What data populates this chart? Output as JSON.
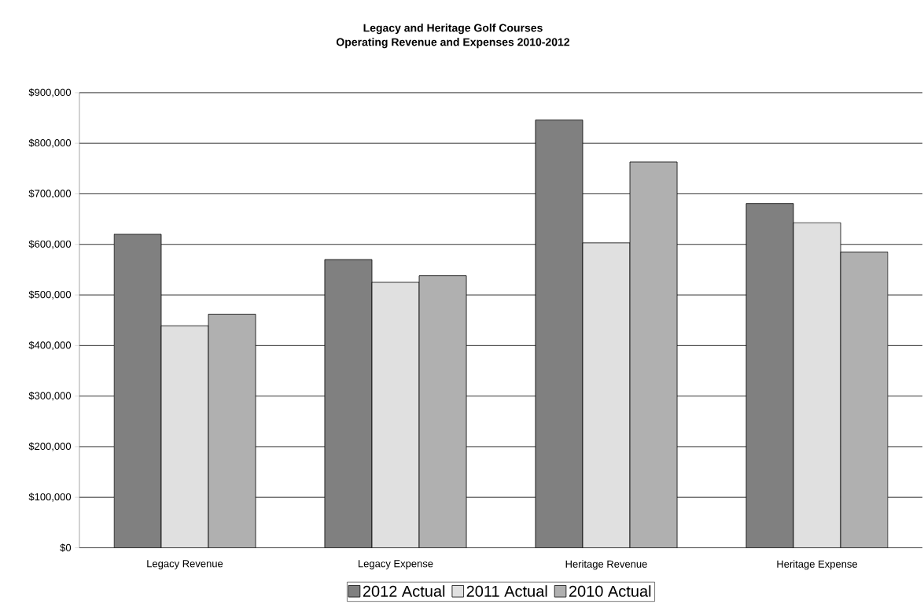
{
  "chart_data": {
    "type": "bar",
    "title": "Legacy and Heritage Golf Courses",
    "subtitle": "Operating Revenue and Expenses 2010-2012",
    "categories": [
      "Legacy Revenue",
      "Legacy Expense",
      "Heritage Revenue",
      "Heritage Expense"
    ],
    "series": [
      {
        "name": "2012 Actual",
        "color": "#808080",
        "values": [
          620000,
          570000,
          846000,
          681000
        ]
      },
      {
        "name": "2011 Actual",
        "color": "#e0e0e0",
        "values": [
          439000,
          525000,
          603000,
          643000
        ]
      },
      {
        "name": "2010 Actual",
        "color": "#b0b0b0",
        "values": [
          462000,
          538000,
          763000,
          585000
        ]
      }
    ],
    "ylim": [
      0,
      900000
    ],
    "yticks": [
      {
        "value": 0,
        "label": "$0"
      },
      {
        "value": 100000,
        "label": "$100,000"
      },
      {
        "value": 200000,
        "label": "$200,000"
      },
      {
        "value": 300000,
        "label": "$300,000"
      },
      {
        "value": 400000,
        "label": "$400,000"
      },
      {
        "value": 500000,
        "label": "$500,000"
      },
      {
        "value": 600000,
        "label": "$600,000"
      },
      {
        "value": 700000,
        "label": "$700,000"
      },
      {
        "value": 800000,
        "label": "$800,000"
      },
      {
        "value": 900000,
        "label": "$900,000"
      }
    ],
    "grid": "y",
    "legend": "bottom"
  }
}
